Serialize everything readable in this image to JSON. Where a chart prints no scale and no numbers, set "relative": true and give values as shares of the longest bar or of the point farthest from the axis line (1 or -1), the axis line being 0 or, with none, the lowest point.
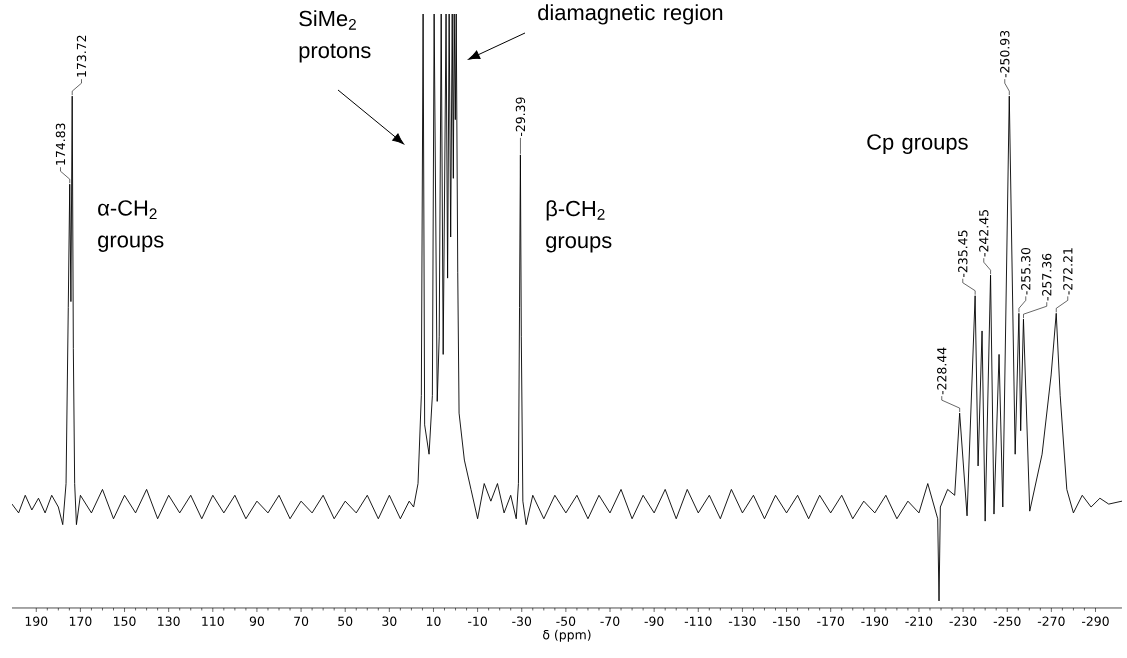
{
  "chart_data": {
    "type": "line",
    "relative": true,
    "xlabel": "δ (ppm)",
    "xlim": [
      201,
      -302
    ],
    "xticks": [
      190,
      170,
      150,
      130,
      110,
      90,
      70,
      50,
      30,
      10,
      -10,
      -30,
      -50,
      -70,
      -90,
      -110,
      -130,
      -150,
      -170,
      -190,
      -210,
      -230,
      -250,
      -270,
      -290
    ],
    "series": [
      {
        "color": "#000000",
        "x": [
          201,
          198,
          195,
          192,
          189,
          186,
          183,
          180,
          178,
          176.5,
          175.5,
          174.83,
          174.3,
          173.72,
          173.2,
          172.6,
          171.8,
          170,
          165,
          160,
          155,
          150,
          145,
          140,
          135,
          130,
          125,
          120,
          115,
          110,
          105,
          100,
          95,
          90,
          85,
          80,
          75,
          70,
          65,
          60,
          55,
          50,
          45,
          40,
          35,
          30,
          25,
          21,
          19,
          17,
          15.5,
          14.7,
          14.0,
          12,
          10.5,
          9.7,
          8.3,
          7.4,
          6.5,
          5.6,
          4.3,
          3.6,
          2.9,
          2.2,
          1.5,
          1.0,
          0.6,
          0.1,
          -0.3,
          -1.0,
          -1.6,
          -4,
          -7,
          -10,
          -13,
          -16,
          -19,
          -22,
          -25,
          -27.5,
          -28.5,
          -29.0,
          -29.39,
          -29.8,
          -30.5,
          -32,
          -35,
          -40,
          -45,
          -50,
          -55,
          -60,
          -65,
          -70,
          -75,
          -80,
          -85,
          -90,
          -95,
          -100,
          -105,
          -110,
          -115,
          -120,
          -125,
          -130,
          -135,
          -140,
          -145,
          -150,
          -155,
          -160,
          -165,
          -170,
          -175,
          -180,
          -185,
          -190,
          -195,
          -200,
          -205,
          -210,
          -214,
          -218.5,
          -219.1,
          -219.7,
          -223,
          -226.2,
          -228.44,
          -231.8,
          -235.45,
          -236.8,
          -238.6,
          -240,
          -242.45,
          -244,
          -246.3,
          -248,
          -250.93,
          -253.6,
          -255.3,
          -256.1,
          -257.36,
          -260.2,
          -265.8,
          -269.9,
          -272.21,
          -274,
          -277,
          -280,
          -284,
          -288,
          -292,
          -296,
          -302
        ],
        "values": [
          0.165,
          0.15,
          0.18,
          0.155,
          0.175,
          0.15,
          0.18,
          0.16,
          0.13,
          0.2,
          0.5,
          0.71,
          0.51,
          0.86,
          0.43,
          0.2,
          0.13,
          0.18,
          0.15,
          0.19,
          0.14,
          0.18,
          0.15,
          0.19,
          0.14,
          0.18,
          0.15,
          0.18,
          0.14,
          0.18,
          0.15,
          0.18,
          0.14,
          0.17,
          0.15,
          0.18,
          0.14,
          0.17,
          0.15,
          0.18,
          0.14,
          0.17,
          0.15,
          0.18,
          0.14,
          0.18,
          0.14,
          0.17,
          0.16,
          0.2,
          0.35,
          1,
          0.3,
          0.25,
          0.35,
          1,
          0.34,
          0.45,
          1,
          0.42,
          1,
          0.55,
          1,
          0.62,
          1,
          0.72,
          1,
          0.82,
          1,
          0.56,
          0.32,
          0.24,
          0.19,
          0.14,
          0.2,
          0.17,
          0.2,
          0.15,
          0.18,
          0.14,
          0.2,
          0.5,
          0.76,
          0.45,
          0.17,
          0.13,
          0.18,
          0.14,
          0.18,
          0.15,
          0.18,
          0.14,
          0.18,
          0.15,
          0.19,
          0.14,
          0.18,
          0.15,
          0.19,
          0.14,
          0.19,
          0.15,
          0.18,
          0.14,
          0.19,
          0.15,
          0.18,
          0.14,
          0.18,
          0.15,
          0.18,
          0.14,
          0.18,
          0.15,
          0.18,
          0.14,
          0.17,
          0.15,
          0.18,
          0.14,
          0.17,
          0.15,
          0.2,
          0.14,
          0,
          0.16,
          0.19,
          0.18,
          0.32,
          0.145,
          0.52,
          0.23,
          0.46,
          0.136,
          0.555,
          0.148,
          0.42,
          0.16,
          0.86,
          0.25,
          0.49,
          0.29,
          0.48,
          0.153,
          0.25,
          0.385,
          0.49,
          0.35,
          0.19,
          0.15,
          0.18,
          0.16,
          0.175,
          0.165,
          0.17
        ]
      }
    ],
    "annotations": [
      {
        "text": "174.83",
        "x": 174.83,
        "y": 0.71
      },
      {
        "text": "173.72",
        "x": 173.72,
        "y": 0.86
      },
      {
        "text": "-29.39",
        "x": -29.39,
        "y": 0.76
      },
      {
        "text": "-228.44",
        "x": -228.44,
        "y": 0.32
      },
      {
        "text": "-235.45",
        "x": -235.45,
        "y": 0.52
      },
      {
        "text": "-242.45",
        "x": -242.45,
        "y": 0.555
      },
      {
        "text": "-250.93",
        "x": -250.93,
        "y": 0.86
      },
      {
        "text": "-255.30",
        "x": -255.3,
        "y": 0.49
      },
      {
        "text": "-257.36",
        "x": -257.36,
        "y": 0.48
      },
      {
        "text": "-272.21",
        "x": -272.21,
        "y": 0.49
      },
      "α-CH$_{2}$ groups",
      "SiMe$_{2}$ protons",
      "diamagnetic region",
      "β-CH$_{2}$ groups",
      "Cp groups"
    ]
  }
}
